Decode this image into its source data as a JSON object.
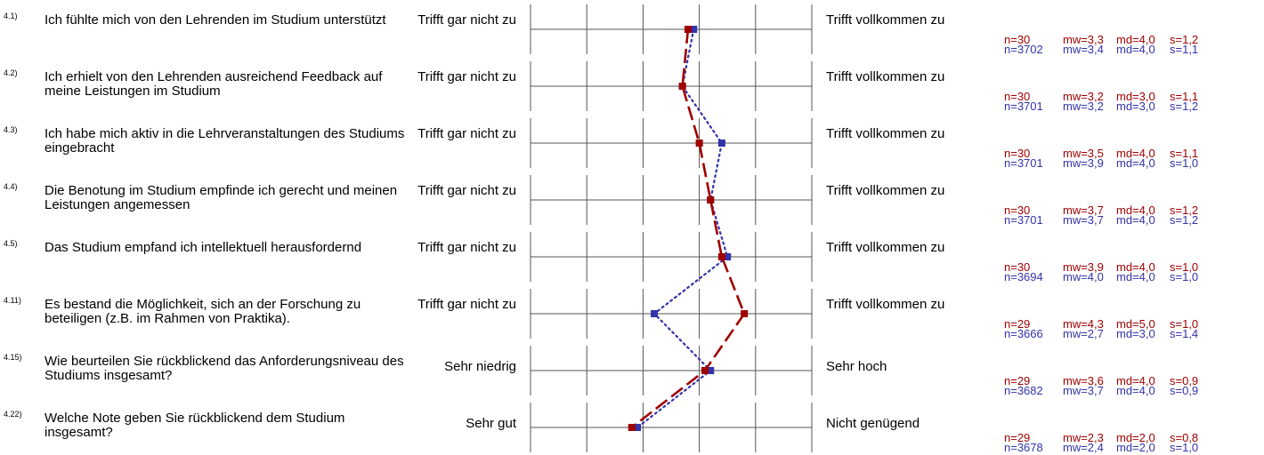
{
  "chart_data": {
    "type": "line",
    "scale_points": 5,
    "series_colors": {
      "group": "#a00000",
      "reference": "#3333aa"
    },
    "rows": [
      {
        "num": "4.1)",
        "question": "Ich fühlte mich von den Lehrenden im Studium unterstützt",
        "left_label": "Trifft gar nicht zu",
        "right_label": "Trifft vollkommen zu",
        "group_stats": {
          "n": "n=30",
          "mw": "mw=3,3",
          "md": "md=4,0",
          "s": "s=1,2"
        },
        "ref_stats": {
          "n": "n=3702",
          "mw": "mw=3,4",
          "md": "md=4,0",
          "s": "s=1,1"
        },
        "group_value": 3.3,
        "ref_value": 3.4
      },
      {
        "num": "4.2)",
        "question": "Ich erhielt von den Lehrenden ausreichend Feedback auf meine Leistungen im Studium",
        "left_label": "Trifft gar nicht zu",
        "right_label": "Trifft vollkommen zu",
        "group_stats": {
          "n": "n=30",
          "mw": "mw=3,2",
          "md": "md=3,0",
          "s": "s=1,1"
        },
        "ref_stats": {
          "n": "n=3701",
          "mw": "mw=3,2",
          "md": "md=3,0",
          "s": "s=1,2"
        },
        "group_value": 3.2,
        "ref_value": 3.2
      },
      {
        "num": "4.3)",
        "question": "Ich habe mich aktiv in die Lehrveranstaltungen des Studiums eingebracht",
        "left_label": "Trifft gar nicht zu",
        "right_label": "Trifft vollkommen zu",
        "group_stats": {
          "n": "n=30",
          "mw": "mw=3,5",
          "md": "md=4,0",
          "s": "s=1,1"
        },
        "ref_stats": {
          "n": "n=3701",
          "mw": "mw=3,9",
          "md": "md=4,0",
          "s": "s=1,0"
        },
        "group_value": 3.5,
        "ref_value": 3.9
      },
      {
        "num": "4.4)",
        "question": "Die Benotung im Studium empfinde ich gerecht und meinen Leistungen angemessen",
        "left_label": "Trifft gar nicht zu",
        "right_label": "Trifft vollkommen zu",
        "group_stats": {
          "n": "n=30",
          "mw": "mw=3,7",
          "md": "md=4,0",
          "s": "s=1,2"
        },
        "ref_stats": {
          "n": "n=3701",
          "mw": "mw=3,7",
          "md": "md=4,0",
          "s": "s=1,2"
        },
        "group_value": 3.7,
        "ref_value": 3.7
      },
      {
        "num": "4.5)",
        "question": "Das Studium empfand ich intellektuell herausfordernd",
        "left_label": "Trifft gar nicht zu",
        "right_label": "Trifft vollkommen zu",
        "group_stats": {
          "n": "n=30",
          "mw": "mw=3,9",
          "md": "md=4,0",
          "s": "s=1,0"
        },
        "ref_stats": {
          "n": "n=3694",
          "mw": "mw=4,0",
          "md": "md=4,0",
          "s": "s=1,0"
        },
        "group_value": 3.9,
        "ref_value": 4.0
      },
      {
        "num": "4.11)",
        "question": "Es bestand die Möglichkeit, sich an der Forschung zu beteiligen (z.B. im Rahmen von Praktika).",
        "left_label": "Trifft gar nicht zu",
        "right_label": "Trifft vollkommen zu",
        "group_stats": {
          "n": "n=29",
          "mw": "mw=4,3",
          "md": "md=5,0",
          "s": "s=1,0"
        },
        "ref_stats": {
          "n": "n=3666",
          "mw": "mw=2,7",
          "md": "md=3,0",
          "s": "s=1,4"
        },
        "group_value": 4.3,
        "ref_value": 2.7
      },
      {
        "num": "4.15)",
        "question": "Wie beurteilen Sie rückblickend das Anforderungsniveau des Studiums insgesamt?",
        "left_label": "Sehr niedrig",
        "right_label": "Sehr hoch",
        "group_stats": {
          "n": "n=29",
          "mw": "mw=3,6",
          "md": "md=4,0",
          "s": "s=0,9"
        },
        "ref_stats": {
          "n": "n=3682",
          "mw": "mw=3,7",
          "md": "md=4,0",
          "s": "s=0,9"
        },
        "group_value": 3.6,
        "ref_value": 3.7
      },
      {
        "num": "4.22)",
        "question": "Welche Note geben Sie rückblickend dem Studium insgesamt?",
        "left_label": "Sehr gut",
        "right_label": "Nicht genügend",
        "group_stats": {
          "n": "n=29",
          "mw": "mw=2,3",
          "md": "md=2,0",
          "s": "s=0,8"
        },
        "ref_stats": {
          "n": "n=3678",
          "mw": "mw=2,4",
          "md": "md=2,0",
          "s": "s=1,0"
        },
        "group_value": 2.3,
        "ref_value": 2.4
      }
    ]
  }
}
